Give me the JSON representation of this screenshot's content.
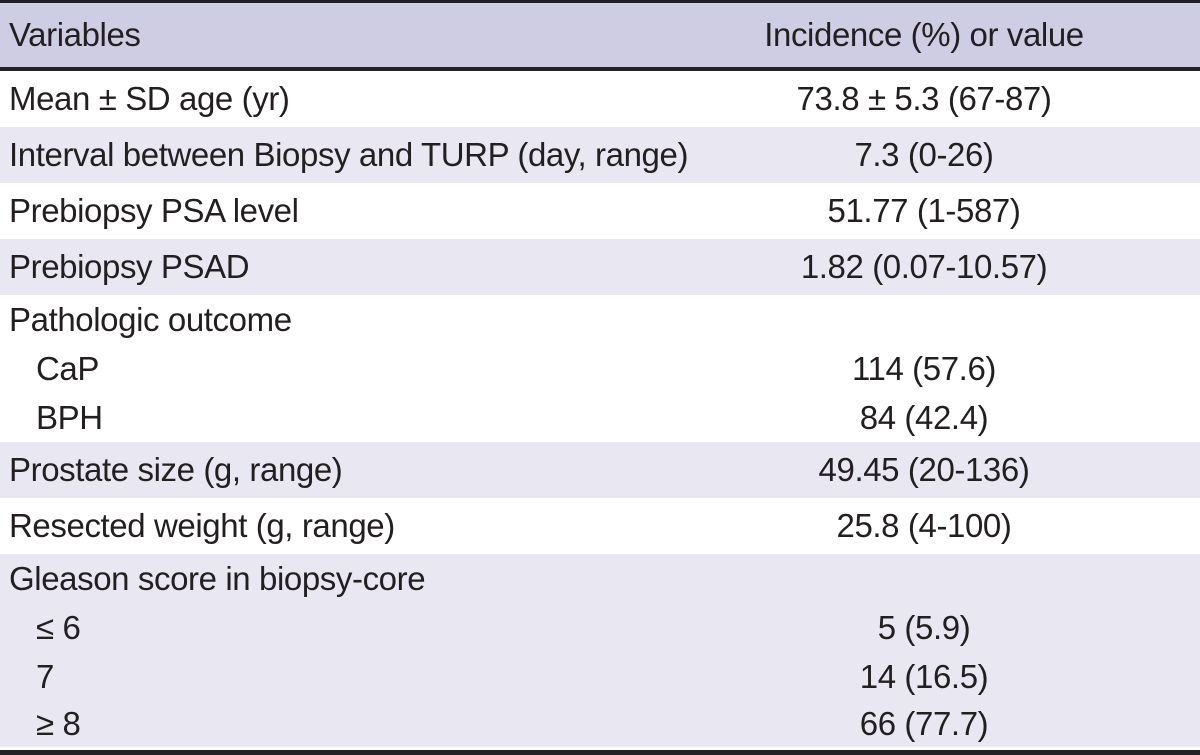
{
  "table": {
    "title_hidden": "",
    "columns": {
      "variables": "Variables",
      "incidence": "Incidence (%) or value"
    },
    "rows": [
      {
        "label": "Mean ± SD age (yr)",
        "value": "73.8 ± 5.3 (67-87)",
        "indent": false,
        "group_header": false
      },
      {
        "label": "Interval between Biopsy and TURP (day, range)",
        "value": "7.3 (0-26)",
        "indent": false,
        "group_header": false
      },
      {
        "label": "Prebiopsy PSA level",
        "value": "51.77 (1-587)",
        "indent": false,
        "group_header": false
      },
      {
        "label": "Prebiopsy PSAD",
        "value": "1.82 (0.07-10.57)",
        "indent": false,
        "group_header": false
      },
      {
        "label": "Pathologic outcome",
        "value": "",
        "indent": false,
        "group_header": true
      },
      {
        "label": "CaP",
        "value": "114 (57.6)",
        "indent": true,
        "group_header": false
      },
      {
        "label": "BPH",
        "value": "84 (42.4)",
        "indent": true,
        "group_header": false
      },
      {
        "label": "Prostate size (g, range)",
        "value": "49.45 (20-136)",
        "indent": false,
        "group_header": false
      },
      {
        "label": "Resected weight (g, range)",
        "value": "25.8 (4-100)",
        "indent": false,
        "group_header": false
      },
      {
        "label": "Gleason score in biopsy-core",
        "value": "",
        "indent": false,
        "group_header": true
      },
      {
        "label": "≤ 6",
        "value": "5 (5.9)",
        "indent": true,
        "group_header": false
      },
      {
        "label": "7",
        "value": "14 (16.5)",
        "indent": true,
        "group_header": false
      },
      {
        "label": "≥ 8",
        "value": "66 (77.7)",
        "indent": true,
        "group_header": false
      }
    ]
  },
  "colors": {
    "header_bg": "#cfcde3",
    "stripe_bg": "#e8e7f2",
    "row_bg": "#ffffff",
    "border": "#232028",
    "text": "#231f20"
  }
}
